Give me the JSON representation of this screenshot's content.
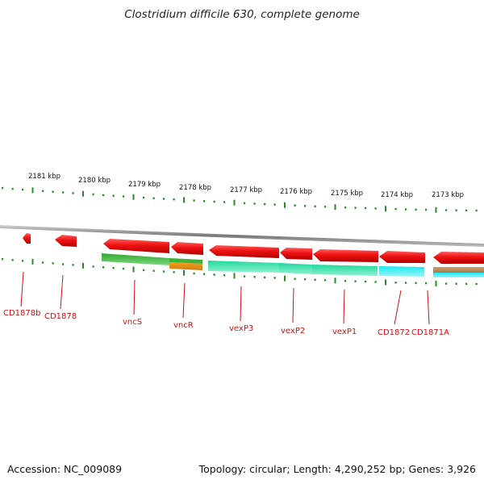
{
  "title": "Clostridium difficile 630, complete genome",
  "footer": {
    "accession": "Accession: NC_009089",
    "topology": "Topology: circular; Length: 4,290,252 bp; Genes: 3,926"
  },
  "colors": {
    "gene_red": "#ee1111",
    "backbone": "#888888",
    "tick_green": "#2a8a2a",
    "label_red": "#cc1111"
  },
  "ruler": [
    "2181 kbp",
    "2180 kbp",
    "2179 kbp",
    "2178 kbp",
    "2177 kbp",
    "2176 kbp",
    "2175 kbp",
    "2174 kbp",
    "2173 kbp"
  ],
  "gene_labels": [
    "CD1878b",
    "CD1878",
    "vncS",
    "vncR",
    "vexP3",
    "vexP2",
    "vexP1",
    "CD1872",
    "CD1871A"
  ]
}
